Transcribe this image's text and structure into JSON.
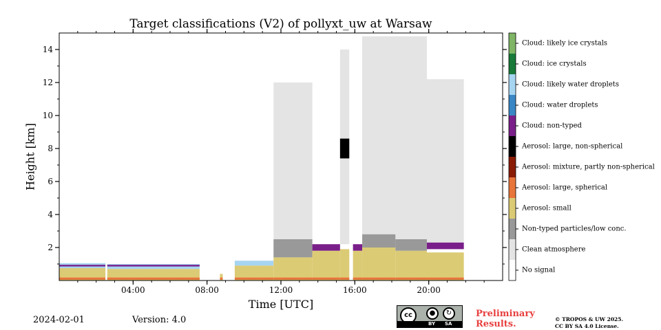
{
  "chart_data": {
    "type": "heatmap",
    "title": "Target classifications (V2) of pollyxt_uw at Warsaw",
    "xlabel": "Time [UTC]",
    "ylabel": "Height [km]",
    "xlim_hours": [
      0,
      24
    ],
    "ylim": [
      0,
      15
    ],
    "x_ticks": [
      {
        "hour": 4,
        "label": "04:00"
      },
      {
        "hour": 8,
        "label": "08:00"
      },
      {
        "hour": 12,
        "label": "12:00"
      },
      {
        "hour": 16,
        "label": "16:00"
      },
      {
        "hour": 20,
        "label": "20:00"
      }
    ],
    "y_ticks": [
      {
        "value": 2,
        "label": "2"
      },
      {
        "value": 4,
        "label": "4"
      },
      {
        "value": 6,
        "label": "6"
      },
      {
        "value": 8,
        "label": "8"
      },
      {
        "value": 10,
        "label": "10"
      },
      {
        "value": 12,
        "label": "12"
      },
      {
        "value": 14,
        "label": "14"
      }
    ],
    "classes": [
      {
        "label": "Cloud: likely ice crystals",
        "color": "#7fb565"
      },
      {
        "label": "Cloud: ice crystals",
        "color": "#187a3a"
      },
      {
        "label": "Cloud: likely water droplets",
        "color": "#a6d5f2"
      },
      {
        "label": "Cloud: water droplets",
        "color": "#3a87c5"
      },
      {
        "label": "Cloud: non-typed",
        "color": "#7a1f8a"
      },
      {
        "label": "Aerosol: large, non-spherical",
        "color": "#000000"
      },
      {
        "label": "Aerosol: mixture, partly non-spherical",
        "color": "#8a1b05"
      },
      {
        "label": "Aerosol: large, spherical",
        "color": "#e8753a"
      },
      {
        "label": "Aerosol: small",
        "color": "#dccb75"
      },
      {
        "label": "Non-typed particles/low conc.",
        "color": "#999999"
      },
      {
        "label": "Clean atmosphere",
        "color": "#e4e4e4"
      },
      {
        "label": "No signal",
        "color": "#ffffff"
      }
    ],
    "segments": [
      {
        "t0": 0.0,
        "t1": 2.5,
        "aerosol_top": 0.75,
        "layers": [
          {
            "class": "Cloud: likely water droplets",
            "bottom": 0.75,
            "top": 1.05
          },
          {
            "class": "Cloud: non-typed",
            "bottom": 0.85,
            "top": 0.95
          }
        ]
      },
      {
        "t0": 2.6,
        "t1": 7.6,
        "aerosol_top": 0.7,
        "layers": [
          {
            "class": "Cloud: likely water droplets",
            "bottom": 0.7,
            "top": 1.0
          },
          {
            "class": "Cloud: non-typed",
            "bottom": 0.85,
            "top": 0.95
          }
        ]
      },
      {
        "t0": 8.7,
        "t1": 8.85,
        "aerosol_top": 0.4,
        "layers": []
      },
      {
        "t0": 9.5,
        "t1": 11.6,
        "aerosol_top": 0.9,
        "layers": [
          {
            "class": "Cloud: likely water droplets",
            "bottom": 0.9,
            "top": 1.2
          }
        ]
      },
      {
        "t0": 11.6,
        "t1": 13.7,
        "aerosol_top": 1.4,
        "layers": [
          {
            "class": "Non-typed particles/low conc.",
            "bottom": 1.4,
            "top": 2.5
          },
          {
            "class": "Clean atmosphere",
            "bottom": 2.5,
            "top": 12.0
          }
        ]
      },
      {
        "t0": 13.7,
        "t1": 15.2,
        "aerosol_top": 1.8,
        "layers": [
          {
            "class": "Cloud: non-typed",
            "bottom": 1.8,
            "top": 2.2
          }
        ]
      },
      {
        "t0": 15.2,
        "t1": 15.7,
        "aerosol_top": 1.9,
        "layers": [
          {
            "class": "Clean atmosphere",
            "bottom": 2.2,
            "top": 14.0
          },
          {
            "class": "Aerosol: large, non-spherical",
            "bottom": 7.4,
            "top": 8.6
          }
        ]
      },
      {
        "t0": 15.9,
        "t1": 16.4,
        "aerosol_top": 1.8,
        "layers": [
          {
            "class": "Cloud: non-typed",
            "bottom": 1.8,
            "top": 2.2
          }
        ]
      },
      {
        "t0": 16.4,
        "t1": 18.2,
        "aerosol_top": 2.0,
        "layers": [
          {
            "class": "Non-typed particles/low conc.",
            "bottom": 2.0,
            "top": 2.8
          },
          {
            "class": "Clean atmosphere",
            "bottom": 2.8,
            "top": 14.8
          }
        ]
      },
      {
        "t0": 18.2,
        "t1": 19.9,
        "aerosol_top": 1.8,
        "layers": [
          {
            "class": "Non-typed particles/low conc.",
            "bottom": 1.8,
            "top": 2.5
          },
          {
            "class": "Clean atmosphere",
            "bottom": 2.5,
            "top": 14.8
          }
        ]
      },
      {
        "t0": 19.9,
        "t1": 21.9,
        "aerosol_top": 1.7,
        "layers": [
          {
            "class": "Cloud: non-typed",
            "bottom": 1.9,
            "top": 2.3
          },
          {
            "class": "Clean atmosphere",
            "bottom": 2.3,
            "top": 12.2
          }
        ]
      }
    ]
  },
  "footer": {
    "date": "2024-02-01",
    "version": "Version: 4.0",
    "license_badge": {
      "cc": "cc",
      "by": "BY",
      "sa": "SA"
    },
    "preliminary": "Preliminary\nResults.",
    "copyright": "© TROPOS & UW 2025.\nCC BY SA 4.0 License."
  }
}
